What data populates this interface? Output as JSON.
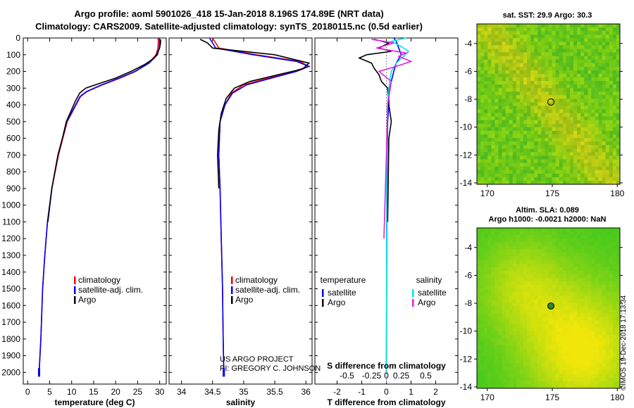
{
  "header": {
    "title_line1": "Argo profile: aoml 5901026_418 15-Jan-2018 8.196S 174.89E (NRT data)",
    "title_line2": "Climatology: CARS2009. Satellite-adjusted climatology: synTS_20180115.nc (0.5d earlier)"
  },
  "credits": {
    "line1": "US ARGO PROJECT",
    "line2": "PI: GREGORY C. JOHNSON"
  },
  "stamp": "©IMOS 19-Dec-2018 17:13:34",
  "colors": {
    "climatology": "#ff0000",
    "satellite": "#0000ff",
    "argo": "#000000",
    "sat_salinity": "#00e5e5",
    "argo_salinity": "#e020e0"
  },
  "chart_data": [
    {
      "type": "line",
      "id": "temperature",
      "xlabel": "temperature (deg C)",
      "xlim": [
        -1,
        31.5
      ],
      "ylim": [
        2070,
        0
      ],
      "xticks": [
        0,
        5,
        10,
        15,
        20,
        25,
        30
      ],
      "yticks": [
        0,
        100,
        200,
        300,
        400,
        500,
        600,
        700,
        800,
        900,
        1000,
        1100,
        1200,
        1300,
        1400,
        1500,
        1600,
        1700,
        1800,
        1900,
        2000
      ],
      "legend": [
        "climatology",
        "satellite-adj. clim.",
        "Argo"
      ],
      "legend_position": "lower-center",
      "series": [
        {
          "name": "climatology",
          "color": "#ff0000",
          "x": [
            29.6,
            29.7,
            29.6,
            29.2,
            27.5,
            24.5,
            21.0,
            17.0,
            13.5,
            12.0,
            11.0,
            10.0,
            9.0,
            8.0,
            7.0,
            5.5,
            4.5,
            3.9,
            3.4,
            3.0,
            2.6
          ],
          "y": [
            0,
            20,
            60,
            100,
            150,
            200,
            240,
            280,
            320,
            350,
            400,
            450,
            500,
            600,
            700,
            900,
            1100,
            1300,
            1500,
            1800,
            2000
          ]
        },
        {
          "name": "satellite-adj. clim.",
          "color": "#0000ff",
          "x": [
            29.9,
            30.0,
            29.9,
            29.5,
            27.6,
            24.4,
            20.8,
            16.8,
            13.4,
            11.9,
            10.9,
            9.9,
            8.9,
            7.9,
            6.9,
            5.5,
            4.5,
            3.9,
            3.4,
            3.0,
            2.6
          ],
          "y": [
            0,
            20,
            60,
            100,
            150,
            200,
            240,
            280,
            320,
            350,
            400,
            450,
            500,
            600,
            700,
            900,
            1100,
            1300,
            1500,
            1800,
            2000
          ]
        },
        {
          "name": "Argo",
          "color": "#000000",
          "x": [
            30.2,
            30.2,
            30.0,
            29.5,
            28.8,
            26.5,
            23.5,
            20.0,
            16.5,
            13.2,
            11.8,
            10.8,
            9.8,
            8.8,
            7.9,
            6.9,
            5.5,
            4.6
          ],
          "y": [
            8,
            30,
            60,
            90,
            120,
            160,
            200,
            240,
            270,
            300,
            330,
            380,
            440,
            500,
            600,
            700,
            900,
            1100
          ]
        }
      ]
    },
    {
      "type": "line",
      "id": "salinity",
      "xlabel": "salinity",
      "xlim": [
        33.8,
        36.1
      ],
      "ylim": [
        2070,
        0
      ],
      "xticks": [
        34,
        34.5,
        35,
        35.5,
        36
      ],
      "legend": [
        "climatology",
        "satellite-adj. clim.",
        "Argo"
      ],
      "legend_position": "lower-center",
      "series": [
        {
          "name": "climatology",
          "color": "#ff0000",
          "x": [
            34.5,
            34.6,
            35.2,
            35.9,
            36.05,
            35.8,
            35.4,
            35.0,
            34.8,
            34.7,
            34.62,
            34.6,
            34.62,
            34.64,
            34.66,
            34.67,
            34.68
          ],
          "y": [
            0,
            60,
            100,
            140,
            170,
            200,
            240,
            280,
            330,
            400,
            500,
            700,
            900,
            1200,
            1500,
            1800,
            2000
          ]
        },
        {
          "name": "satellite-adj. clim.",
          "color": "#0000ff",
          "x": [
            34.45,
            34.55,
            35.15,
            35.85,
            36.05,
            35.85,
            35.45,
            35.05,
            34.82,
            34.7,
            34.62,
            34.6,
            34.62,
            34.64,
            34.66,
            34.67,
            34.68
          ],
          "y": [
            0,
            60,
            100,
            140,
            170,
            200,
            240,
            280,
            330,
            400,
            500,
            700,
            900,
            1200,
            1500,
            1800,
            2000
          ]
        },
        {
          "name": "Argo",
          "color": "#000000",
          "x": [
            34.3,
            34.42,
            34.5,
            35.5,
            36.05,
            35.95,
            35.55,
            35.1,
            34.85,
            34.72,
            34.64,
            34.6,
            34.58,
            34.6
          ],
          "y": [
            8,
            30,
            60,
            100,
            150,
            185,
            220,
            260,
            300,
            360,
            450,
            550,
            700,
            900
          ]
        }
      ]
    },
    {
      "type": "line",
      "id": "difference",
      "xlabel": "T difference from climatology",
      "xlabel2": "S difference from climatology",
      "xlim": [
        -2.9,
        2.9
      ],
      "ylim": [
        2070,
        0
      ],
      "xticks": [
        -2,
        -1,
        0,
        1,
        2
      ],
      "xticks2": [
        "-0.5",
        "-0.25",
        "0",
        "0.25",
        "0.5"
      ],
      "legend_left_title": "temperature",
      "legend_right_title": "salinity",
      "legend_left": [
        "satellite",
        "Argo"
      ],
      "legend_right": [
        "satellite",
        "Argo"
      ],
      "series": [
        {
          "name": "temperature satellite",
          "color": "#0000ff",
          "x": [
            0.3,
            0.4,
            0.5,
            0.6,
            0.4,
            0.3,
            0.2,
            0.1,
            0.1,
            0.05,
            0.03,
            0.02,
            0.0
          ],
          "y": [
            0,
            20,
            60,
            100,
            150,
            200,
            260,
            330,
            400,
            500,
            700,
            1000,
            2000
          ]
        },
        {
          "name": "temperature Argo",
          "color": "#000000",
          "x": [
            -0.5,
            0.1,
            -0.3,
            0.2,
            -0.8,
            -1.1,
            -0.6,
            -0.5,
            -0.3,
            -0.2,
            0.05,
            0.1,
            0.2,
            0.1,
            0.05
          ],
          "y": [
            8,
            30,
            60,
            80,
            100,
            120,
            150,
            180,
            220,
            260,
            300,
            400,
            500,
            600,
            1100
          ]
        },
        {
          "name": "salinity satellite",
          "color": "#00e5e5",
          "x": [
            0.8,
            0.2,
            0.6,
            0.9,
            0.7,
            0.4,
            0.2,
            0.1,
            0.05,
            0.02,
            0.01,
            0.0
          ],
          "y": [
            0,
            20,
            50,
            80,
            110,
            150,
            200,
            300,
            400,
            600,
            1000,
            2000
          ]
        },
        {
          "name": "salinity Argo",
          "color": "#e020e0",
          "x": [
            -0.6,
            0.3,
            -0.4,
            0.8,
            0.5,
            1.0,
            0.4,
            -0.3,
            0.2,
            0.05,
            0.0,
            -0.1
          ],
          "y": [
            8,
            30,
            60,
            90,
            110,
            140,
            170,
            200,
            260,
            400,
            700,
            1200
          ]
        }
      ]
    },
    {
      "type": "heatmap",
      "id": "sst_map",
      "title": "sat. SST: 29.9 Argo: 30.3",
      "xlim": [
        169.2,
        180.2
      ],
      "ylim": [
        -14.1,
        -2.6
      ],
      "xticks": [
        170,
        175,
        180
      ],
      "yticks": [
        -4,
        -6,
        -8,
        -10,
        -12,
        -14
      ],
      "marker": {
        "lon": 174.89,
        "lat": -8.196
      }
    },
    {
      "type": "heatmap",
      "id": "sla_map",
      "title": "Altim. SLA: 0.089",
      "subtitle": "Argo h1000: -0.0021 h2000: NaN",
      "xlim": [
        169.2,
        180.2
      ],
      "ylim": [
        -14.1,
        -2.6
      ],
      "xticks": [
        170,
        175,
        180
      ],
      "yticks": [
        -4,
        -6,
        -8,
        -10,
        -12,
        -14
      ],
      "marker": {
        "lon": 174.89,
        "lat": -8.196
      }
    }
  ]
}
